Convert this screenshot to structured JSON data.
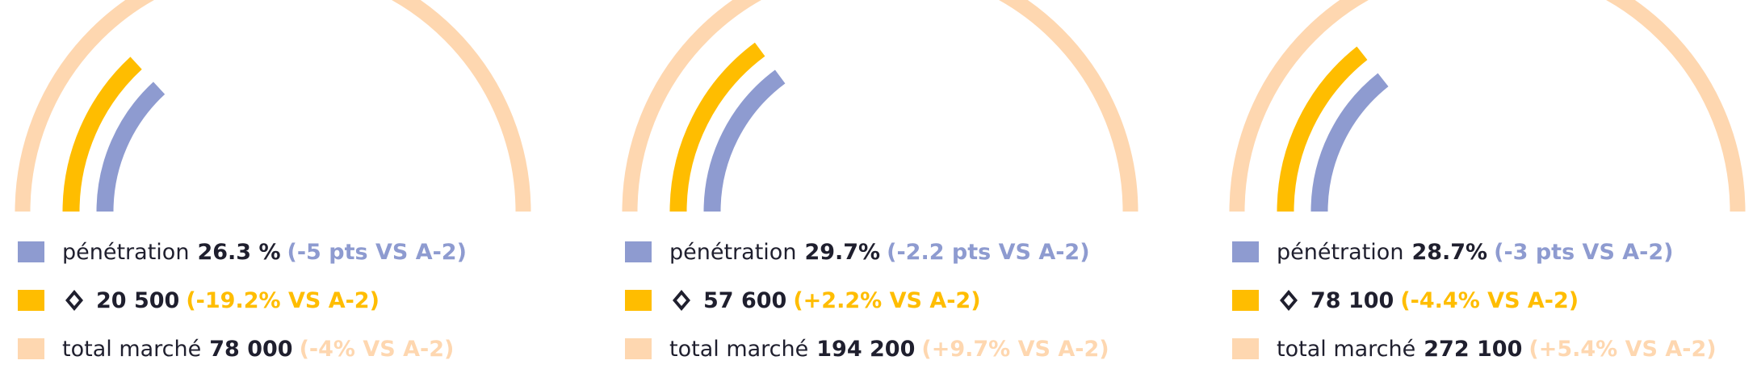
{
  "colors": {
    "penetration": "#8e9bd0",
    "brand": "#ffbd00",
    "market": "#fed7b0",
    "text": "#1f1f2e"
  },
  "chart_data": [
    {
      "type": "gauge",
      "series": [
        {
          "label": "pénétration",
          "value": "26.3 %",
          "delta": "(-5 pts VS A-2)",
          "fraction": 0.263
        },
        {
          "icon": "renault-logo-icon",
          "value": "20 500",
          "delta": "(-19.2% VS A-2)",
          "fraction": 0.263
        },
        {
          "label": "total marché",
          "value": "78 000",
          "delta": "(-4% VS A-2)",
          "fraction": 1.0
        }
      ]
    },
    {
      "type": "gauge",
      "series": [
        {
          "label": "pénétration",
          "value": "29.7%",
          "delta": "(-2.2 pts VS A-2)",
          "fraction": 0.297
        },
        {
          "icon": "renault-logo-icon",
          "value": "57 600",
          "delta": "(+2.2% VS A-2)",
          "fraction": 0.297
        },
        {
          "label": "total marché",
          "value": "194 200",
          "delta": "(+9.7% VS A-2)",
          "fraction": 1.0
        }
      ]
    },
    {
      "type": "gauge",
      "series": [
        {
          "label": "pénétration",
          "value": "28.7%",
          "delta": "(-3 pts VS A-2)",
          "fraction": 0.287
        },
        {
          "icon": "renault-logo-icon",
          "value": "78 100",
          "delta": "(-4.4% VS A-2)",
          "fraction": 0.287
        },
        {
          "label": "total marché",
          "value": "272 100",
          "delta": "(+5.4% VS A-2)",
          "fraction": 1.0
        }
      ]
    }
  ]
}
